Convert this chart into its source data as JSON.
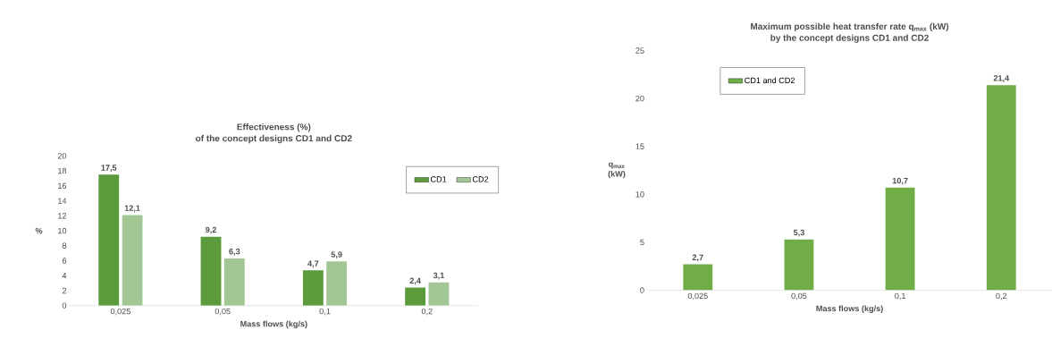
{
  "chart_data": [
    {
      "type": "bar",
      "title": "Effectiveness (%)",
      "subtitle": "of the concept designs CD1 and CD2",
      "xlabel": "Mass flows (kg/s)",
      "ylabel": "%",
      "categories": [
        "0,025",
        "0,05",
        "0,1",
        "0,2"
      ],
      "series": [
        {
          "name": "CD1",
          "color": "#5b9b3b",
          "values": [
            17.5,
            9.2,
            4.7,
            2.4
          ],
          "value_labels": [
            "17,5",
            "9,2",
            "4,7",
            "2,4"
          ]
        },
        {
          "name": "CD2",
          "color": "#a3c794",
          "values": [
            12.1,
            6.3,
            5.9,
            3.1
          ],
          "value_labels": [
            "12,1",
            "6,3",
            "5,9",
            "3,1"
          ]
        }
      ],
      "ylim": [
        0,
        20
      ],
      "yticks": [
        0,
        2,
        4,
        6,
        8,
        10,
        12,
        14,
        16,
        18,
        20
      ],
      "legend": "top right"
    },
    {
      "type": "bar",
      "title": "Maximum possible heat transfer rate q$_{max}$ (kW)",
      "subtitle": "by the concept designs CD1 and CD2",
      "xlabel": "Mass flows (kg/s)",
      "ylabel": "q$_{max}$ (kW)",
      "categories": [
        "0,025",
        "0,05",
        "0,1",
        "0,2"
      ],
      "series": [
        {
          "name": "CD1 and CD2",
          "color": "#70ad47",
          "values": [
            2.7,
            5.3,
            10.7,
            21.4
          ],
          "value_labels": [
            "2,7",
            "5,3",
            "10,7",
            "21,4"
          ]
        }
      ],
      "ylim": [
        0,
        25
      ],
      "yticks": [
        0,
        5,
        10,
        15,
        20,
        25
      ],
      "legend": "top left"
    }
  ]
}
